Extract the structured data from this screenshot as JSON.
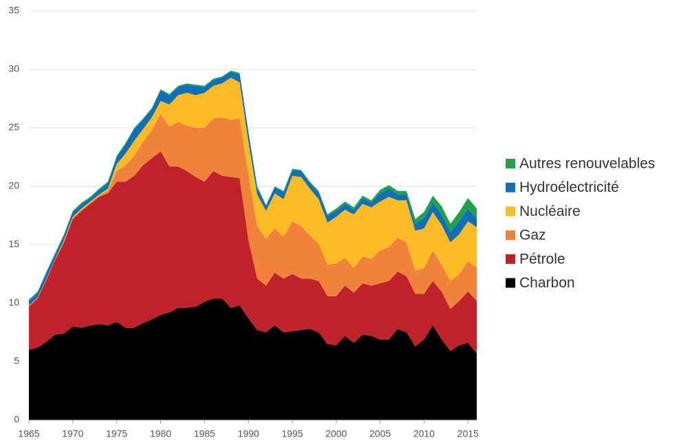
{
  "chart_data": {
    "type": "stacked_area",
    "x": [
      1965,
      1966,
      1967,
      1968,
      1969,
      1970,
      1971,
      1972,
      1973,
      1974,
      1975,
      1976,
      1977,
      1978,
      1979,
      1980,
      1981,
      1982,
      1983,
      1984,
      1985,
      1986,
      1987,
      1988,
      1989,
      1990,
      1991,
      1992,
      1993,
      1994,
      1995,
      1996,
      1997,
      1998,
      1999,
      2000,
      2001,
      2002,
      2003,
      2004,
      2005,
      2006,
      2007,
      2008,
      2009,
      2010,
      2011,
      2012,
      2013,
      2014,
      2015,
      2016
    ],
    "xlim": [
      1965,
      2016
    ],
    "xticks": [
      1965,
      1970,
      1975,
      1980,
      1985,
      1990,
      1995,
      2000,
      2005,
      2010,
      2015
    ],
    "ylim": [
      0,
      35
    ],
    "yticks": [
      0,
      5,
      10,
      15,
      20,
      25,
      30,
      35
    ],
    "grid": true,
    "legend": "right",
    "series": [
      {
        "name": "Charbon",
        "color": "#000000",
        "values": [
          6.0,
          6.2,
          6.7,
          7.3,
          7.4,
          8.0,
          7.9,
          8.1,
          8.2,
          8.1,
          8.4,
          7.9,
          7.9,
          8.3,
          8.6,
          9.0,
          9.2,
          9.6,
          9.6,
          9.7,
          10.1,
          10.4,
          10.4,
          9.6,
          9.8,
          8.7,
          7.7,
          7.5,
          8.1,
          7.5,
          7.6,
          7.7,
          7.8,
          7.5,
          6.5,
          6.4,
          7.2,
          6.6,
          7.3,
          7.2,
          6.9,
          6.9,
          7.8,
          7.5,
          6.3,
          6.9,
          8.1,
          6.9,
          5.9,
          6.4,
          6.6,
          5.7
        ]
      },
      {
        "name": "Pétrole",
        "color": "#c0222a",
        "values": [
          3.7,
          4.2,
          5.3,
          6.4,
          7.8,
          9.2,
          10.0,
          10.4,
          10.9,
          11.3,
          12.0,
          12.5,
          13.0,
          13.5,
          13.8,
          14.0,
          12.5,
          12.1,
          11.7,
          11.1,
          10.3,
          10.9,
          10.5,
          11.2,
          10.9,
          6.7,
          4.4,
          4.0,
          4.5,
          4.6,
          4.9,
          4.4,
          4.3,
          4.4,
          4.1,
          4.2,
          4.3,
          4.3,
          4.4,
          4.3,
          4.8,
          5.0,
          4.9,
          4.8,
          4.5,
          3.9,
          3.8,
          4.1,
          3.6,
          3.8,
          4.4,
          4.5
        ]
      },
      {
        "name": "Gaz",
        "color": "#f0823c",
        "values": [
          0.1,
          0.1,
          0.1,
          0.1,
          0.1,
          0.1,
          0.1,
          0.1,
          0.1,
          0.2,
          0.9,
          1.4,
          1.7,
          2.0,
          2.4,
          3.2,
          3.4,
          3.8,
          3.9,
          4.2,
          4.6,
          4.5,
          5.0,
          4.9,
          5.1,
          5.6,
          4.5,
          4.0,
          3.8,
          3.6,
          4.5,
          4.5,
          3.7,
          3.2,
          2.7,
          2.8,
          2.4,
          2.1,
          2.3,
          2.3,
          2.8,
          2.9,
          2.9,
          2.9,
          2.0,
          2.2,
          2.6,
          2.3,
          2.4,
          2.3,
          2.6,
          2.8
        ]
      },
      {
        "name": "Nucléaire",
        "color": "#fbbb24",
        "values": [
          0,
          0,
          0,
          0,
          0.1,
          0.1,
          0.1,
          0.1,
          0.1,
          0.2,
          0.6,
          1.0,
          1.3,
          1.1,
          1.1,
          1.1,
          1.9,
          2.3,
          2.8,
          2.8,
          3.0,
          2.8,
          2.9,
          3.6,
          3.1,
          2.8,
          2.7,
          2.4,
          3.0,
          3.2,
          3.9,
          4.2,
          4.0,
          3.8,
          3.6,
          4.0,
          4.1,
          4.6,
          4.5,
          4.4,
          4.2,
          4.3,
          3.2,
          3.6,
          3.4,
          3.4,
          3.3,
          3.4,
          3.3,
          3.4,
          3.4,
          3.5
        ]
      },
      {
        "name": "Hydroélectricité",
        "color": "#0f70b7",
        "values": [
          0.4,
          0.4,
          0.5,
          0.4,
          0.4,
          0.4,
          0.4,
          0.3,
          0.4,
          0.5,
          0.6,
          0.8,
          1.0,
          0.8,
          0.7,
          0.9,
          0.8,
          0.7,
          0.7,
          0.8,
          0.5,
          0.5,
          0.5,
          0.5,
          0.7,
          0.8,
          0.6,
          0.4,
          0.5,
          0.6,
          0.5,
          0.5,
          0.5,
          0.6,
          0.6,
          0.5,
          0.5,
          0.4,
          0.5,
          0.4,
          0.7,
          0.7,
          0.5,
          0.5,
          0.6,
          0.9,
          0.8,
          0.9,
          0.9,
          1.1,
          1.1,
          0.7
        ]
      },
      {
        "name": "Autres renouvelables",
        "color": "#22a04b",
        "values": [
          0.1,
          0.1,
          0.1,
          0.1,
          0.1,
          0.1,
          0.1,
          0.1,
          0.1,
          0.1,
          0.1,
          0.1,
          0.1,
          0.1,
          0.1,
          0.1,
          0.1,
          0.1,
          0.1,
          0.1,
          0.1,
          0.1,
          0.1,
          0.1,
          0.1,
          0.1,
          0.1,
          0.1,
          0.1,
          0.1,
          0.1,
          0.1,
          0.1,
          0.1,
          0.1,
          0.2,
          0.2,
          0.2,
          0.2,
          0.2,
          0.3,
          0.3,
          0.3,
          0.3,
          0.4,
          0.5,
          0.6,
          0.7,
          0.7,
          0.8,
          0.9,
          0.9
        ]
      }
    ]
  }
}
